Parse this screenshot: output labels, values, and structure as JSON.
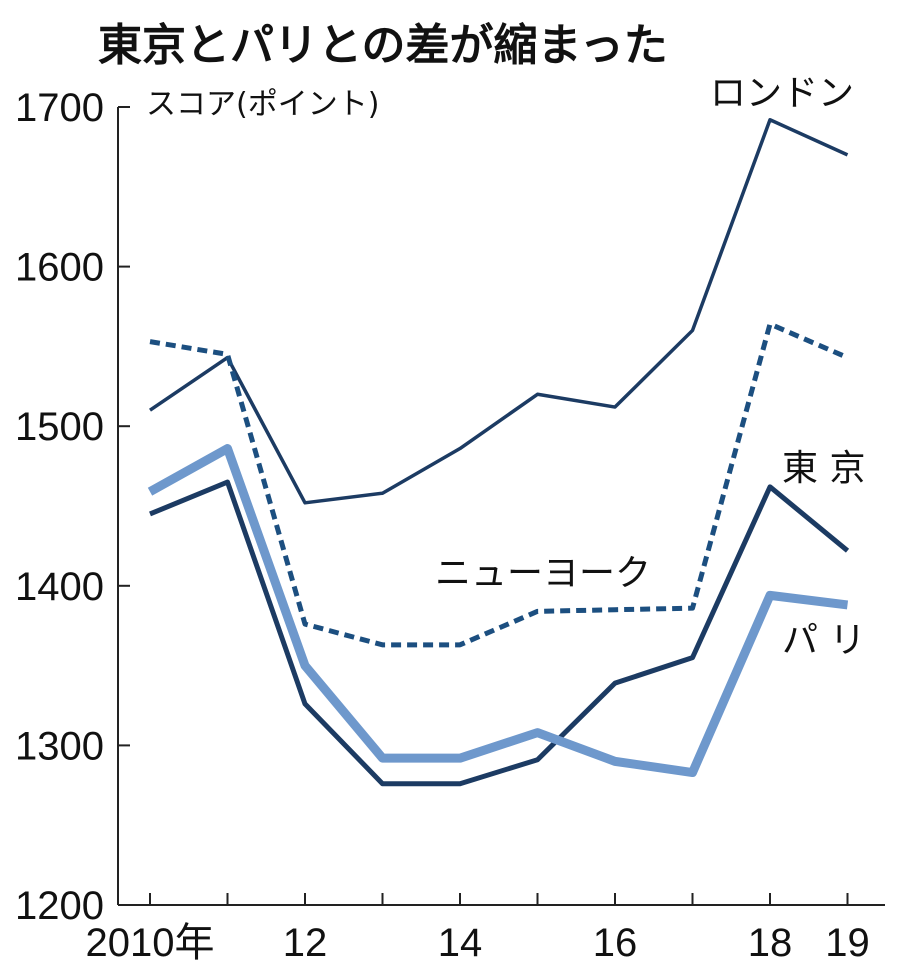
{
  "chart_data": {
    "type": "line",
    "title": "東京とパリとの差が縮まった",
    "ylabel": "スコア(ポイント)",
    "xlabel": "",
    "x": [
      2010,
      2011,
      2012,
      2013,
      2014,
      2015,
      2016,
      2017,
      2018,
      2019
    ],
    "x_tick_labels": [
      {
        "x": 2010,
        "label": "2010年"
      },
      {
        "x": 2012,
        "label": "12"
      },
      {
        "x": 2014,
        "label": "14"
      },
      {
        "x": 2016,
        "label": "16"
      },
      {
        "x": 2018,
        "label": "18"
      },
      {
        "x": 2019,
        "label": "19"
      }
    ],
    "ylim": [
      1200,
      1700
    ],
    "y_ticks": [
      1200,
      1300,
      1400,
      1500,
      1600,
      1700
    ],
    "grid": false,
    "series": [
      {
        "name": "ロンドン",
        "style": "solid-thin",
        "color": "#1c3b63",
        "values": [
          1510,
          1543,
          1452,
          1458,
          1486,
          1520,
          1512,
          1560,
          1692,
          1670
        ]
      },
      {
        "name": "ニューヨーク",
        "style": "dashed",
        "color": "#1c4f80",
        "values": [
          1553,
          1545,
          1376,
          1363,
          1363,
          1384,
          1385,
          1386,
          1564,
          1543
        ]
      },
      {
        "name": "東 京",
        "style": "solid-medium",
        "color": "#1c3b63",
        "values": [
          1445,
          1465,
          1326,
          1276,
          1276,
          1291,
          1339,
          1355,
          1462,
          1422
        ]
      },
      {
        "name": "パ リ",
        "style": "solid-thick",
        "color": "#6e98cc",
        "values": [
          1459,
          1486,
          1350,
          1292,
          1292,
          1308,
          1290,
          1283,
          1394,
          1388
        ]
      }
    ]
  }
}
